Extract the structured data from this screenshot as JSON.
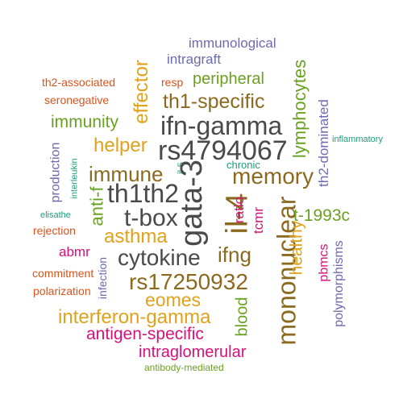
{
  "colors": {
    "dark_gray": "#4a4a4a",
    "brown": "#8b6a1f",
    "gold": "#e0a21b",
    "green": "#6aa121",
    "magenta": "#d6127a",
    "purple": "#6d6ab0",
    "orange": "#d9531c",
    "teal": "#1e9c7a"
  },
  "words": [
    "immunological",
    "intragraft",
    "th2-associated",
    "resp",
    "peripheral",
    "seronegative",
    "th1-specific",
    "effector",
    "lymphocytes",
    "immunity",
    "ifn-gamma",
    "th2-dominated",
    "inflammatory",
    "helper",
    "rs4794067",
    "production",
    "interleukin",
    "chronic",
    "il-5",
    "memory",
    "immune",
    "gata-3",
    "th1th2",
    "anti-f",
    "il-4",
    "elisathe",
    "t-box",
    "ratio",
    "tcmr",
    "mononuclear",
    "t-1993c",
    "rejection",
    "asthma",
    "healthy",
    "abmr",
    "cytokine",
    "ifng",
    "pbmcs",
    "commitment",
    "infection",
    "polymorphisms",
    "rs17250932",
    "polarization",
    "eomes",
    "blood",
    "interferon-gamma",
    "antigen-specific",
    "intraglomerular",
    "antibody-mediated"
  ]
}
